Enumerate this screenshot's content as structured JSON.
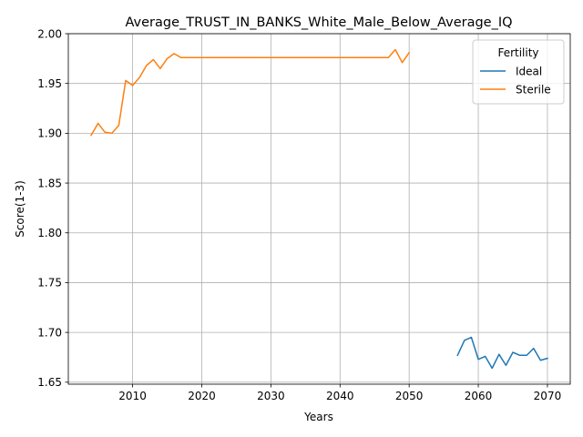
{
  "chart_data": {
    "type": "line",
    "title": "Average_TRUST_IN_BANKS_White_Male_Below_Average_IQ",
    "xlabel": "Years",
    "ylabel": "Score(1-3)",
    "xlim": [
      2000.7,
      2073.3
    ],
    "ylim": [
      1.648,
      2.0
    ],
    "xticks": [
      2010,
      2020,
      2030,
      2040,
      2050,
      2060,
      2070
    ],
    "yticks": [
      1.65,
      1.7,
      1.75,
      1.8,
      1.85,
      1.9,
      1.95,
      2.0
    ],
    "xtick_labels": [
      "2010",
      "2020",
      "2030",
      "2040",
      "2050",
      "2060",
      "2070"
    ],
    "ytick_labels": [
      "1.65",
      "1.70",
      "1.75",
      "1.80",
      "1.85",
      "1.90",
      "1.95",
      "2.00"
    ],
    "grid": true,
    "legend": {
      "title": "Fertility",
      "position": "top-right"
    },
    "series": [
      {
        "name": "Ideal",
        "color": "#1f77b4",
        "x": [
          2057,
          2058,
          2059,
          2060,
          2061,
          2062,
          2063,
          2064,
          2065,
          2066,
          2067,
          2068,
          2069,
          2070
        ],
        "y": [
          1.677,
          1.692,
          1.695,
          1.673,
          1.676,
          1.664,
          1.678,
          1.667,
          1.68,
          1.677,
          1.677,
          1.684,
          1.672,
          1.674
        ]
      },
      {
        "name": "Sterile",
        "color": "#ff7f0e",
        "x": [
          2004,
          2005,
          2006,
          2007,
          2008,
          2009,
          2010,
          2011,
          2012,
          2013,
          2014,
          2015,
          2016,
          2017,
          2018,
          2019,
          2020,
          2021,
          2022,
          2023,
          2024,
          2025,
          2026,
          2027,
          2028,
          2029,
          2030,
          2031,
          2032,
          2033,
          2034,
          2035,
          2036,
          2037,
          2038,
          2039,
          2040,
          2041,
          2042,
          2043,
          2044,
          2045,
          2046,
          2047,
          2048,
          2049,
          2050
        ],
        "y": [
          1.898,
          1.91,
          1.901,
          1.9,
          1.908,
          1.953,
          1.948,
          1.956,
          1.968,
          1.974,
          1.965,
          1.975,
          1.98,
          1.976,
          1.976,
          1.976,
          1.976,
          1.976,
          1.976,
          1.976,
          1.976,
          1.976,
          1.976,
          1.976,
          1.976,
          1.976,
          1.976,
          1.976,
          1.976,
          1.976,
          1.976,
          1.976,
          1.976,
          1.976,
          1.976,
          1.976,
          1.976,
          1.976,
          1.976,
          1.976,
          1.976,
          1.976,
          1.976,
          1.976,
          1.984,
          1.971,
          1.981
        ]
      }
    ]
  }
}
